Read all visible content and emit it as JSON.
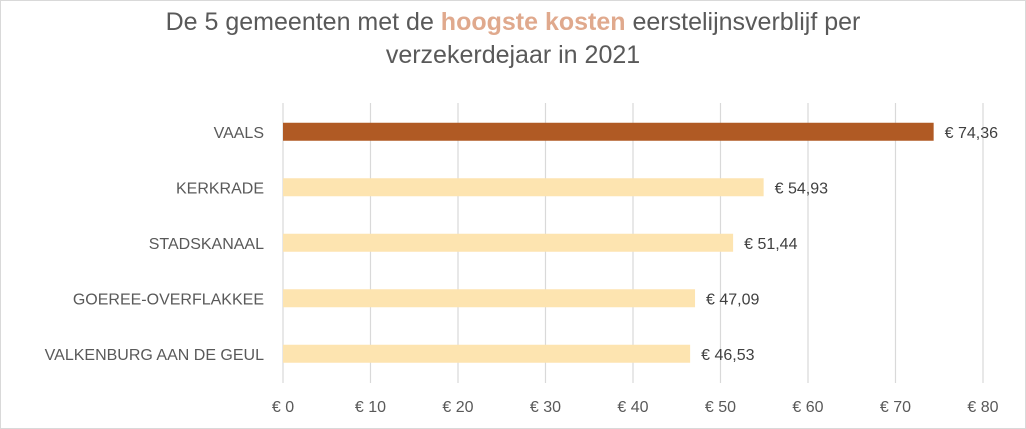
{
  "chart_data": {
    "type": "bar",
    "orientation": "horizontal",
    "title": {
      "before": "De 5 gemeenten met de ",
      "highlight": "hoogste kosten",
      "after": " eerstelijnsverblijf per",
      "line2": "verzekerdejaar in 2021"
    },
    "categories": [
      "VAALS",
      "KERKRADE",
      "STADSKANAAL",
      "GOEREE-OVERFLAKKEE",
      "VALKENBURG AAN DE GEUL"
    ],
    "values": [
      74.36,
      54.93,
      51.44,
      47.09,
      46.53
    ],
    "value_labels": [
      "€ 74,36",
      "€ 54,93",
      "€ 51,44",
      "€ 47,09",
      "€ 46,53"
    ],
    "xlim": [
      0,
      80
    ],
    "x_ticks": [
      0,
      10,
      20,
      30,
      40,
      50,
      60,
      70,
      80
    ],
    "x_tick_labels": [
      "€ 0",
      "€ 10",
      "€ 20",
      "€ 30",
      "€ 40",
      "€ 50",
      "€ 60",
      "€ 70",
      "€ 80"
    ],
    "grid": true,
    "colors": {
      "highlight_bar": "#b05a24",
      "bar": "#fde4b0",
      "title_highlight": "#e0a98d"
    },
    "highlight_index": 0
  }
}
